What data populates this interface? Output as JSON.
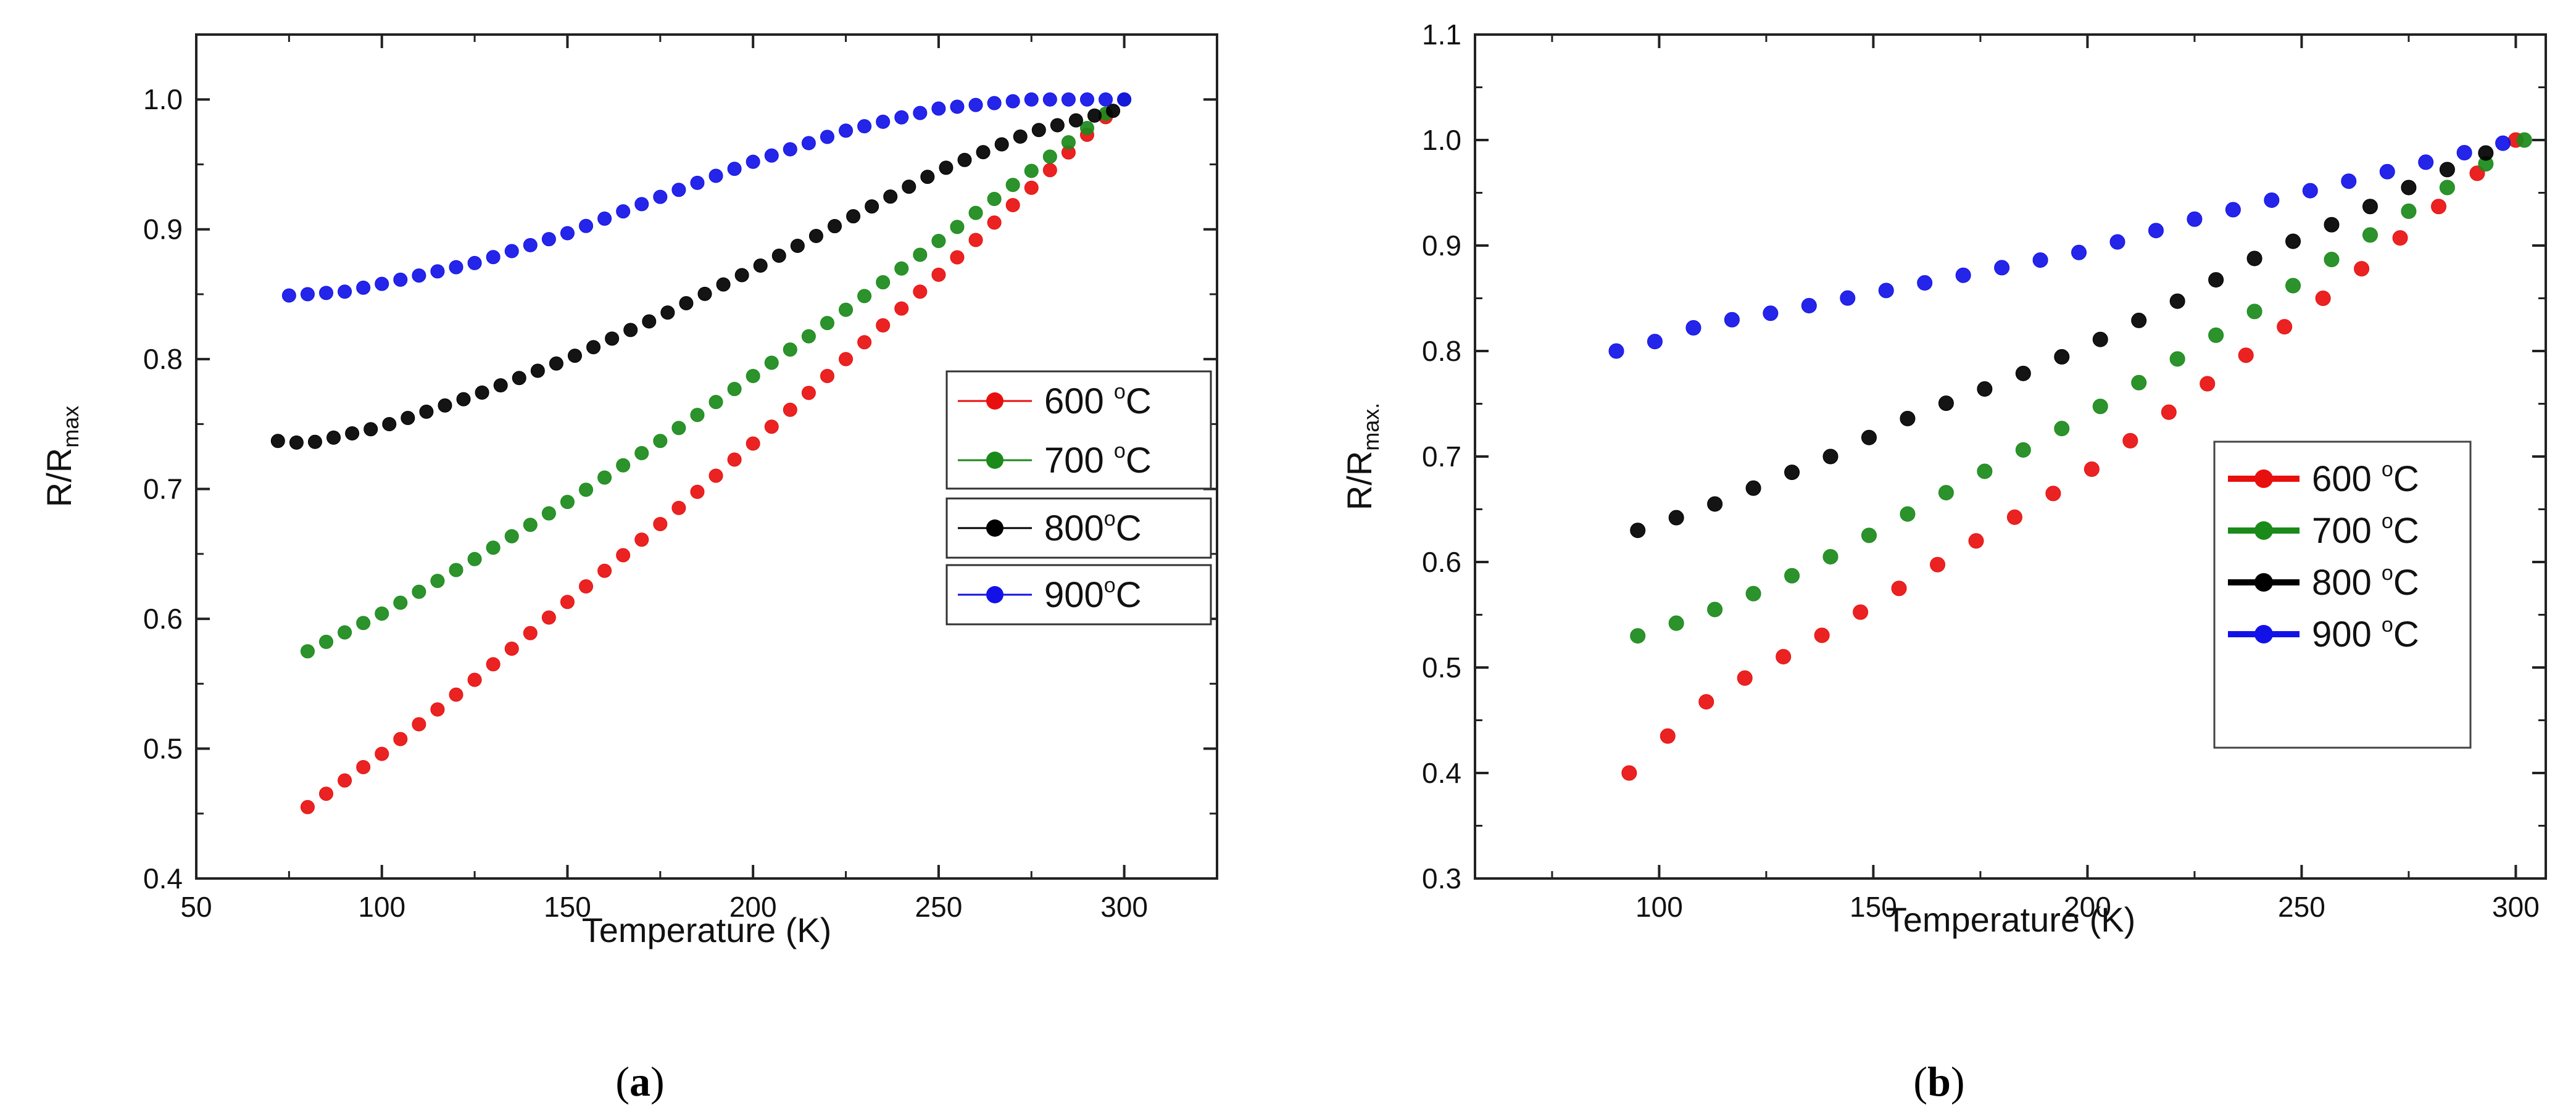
{
  "figure": {
    "panels": [
      {
        "paren_open": "(",
        "letter": "a",
        "paren_close": ")"
      },
      {
        "paren_open": "(",
        "letter": "b",
        "paren_close": ")"
      }
    ]
  },
  "chart_data": [
    {
      "type": "scatter",
      "panel_label": "a",
      "xlabel": "Temperature (K)",
      "ylabel_main": "R/R",
      "ylabel_sub": "max",
      "xlim": [
        50,
        325
      ],
      "ylim": [
        0.4,
        1.05
      ],
      "xticks": [
        50,
        100,
        150,
        200,
        250,
        300
      ],
      "xtick_labels": [
        "50",
        "100",
        "150",
        "200",
        "250",
        "300"
      ],
      "yticks": [
        0.4,
        0.5,
        0.6,
        0.7,
        0.8,
        0.9,
        1.0
      ],
      "ytick_labels": [
        "0.4",
        "0.5",
        "0.6",
        "0.7",
        "0.8",
        "0.9",
        "1.0"
      ],
      "legend_position": "right-middle",
      "legend_style": "grouped",
      "series": [
        {
          "name": "600 °C",
          "label_main": "600 ",
          "label_sup": "o",
          "label_unit": "C",
          "color": "#e8100f",
          "x": [
            80,
            100,
            125,
            150,
            175,
            200,
            225,
            250,
            275,
            300
          ],
          "y": [
            0.455,
            0.496,
            0.553,
            0.613,
            0.673,
            0.735,
            0.8,
            0.865,
            0.932,
            1.0
          ]
        },
        {
          "name": "700 °C",
          "label_main": "700 ",
          "label_sup": "o",
          "label_unit": "C",
          "color": "#1a8a1a",
          "x": [
            80,
            100,
            125,
            150,
            175,
            200,
            225,
            250,
            275,
            300
          ],
          "y": [
            0.575,
            0.604,
            0.646,
            0.69,
            0.737,
            0.787,
            0.838,
            0.891,
            0.945,
            1.0
          ]
        },
        {
          "name": "800°C",
          "label_main": "800",
          "label_sup": "o",
          "label_unit": "C",
          "color": "#000000",
          "x": [
            72,
            80,
            100,
            125,
            150,
            175,
            200,
            225,
            250,
            275,
            298
          ],
          "y": [
            0.737,
            0.735,
            0.748,
            0.772,
            0.8,
            0.833,
            0.869,
            0.907,
            0.945,
            0.975,
            0.992
          ]
        },
        {
          "name": "900°C",
          "label_main": "900",
          "label_sup": "o",
          "label_unit": "C",
          "color": "#1212e8",
          "x": [
            75,
            90,
            100,
            125,
            150,
            175,
            200,
            225,
            250,
            275,
            300
          ],
          "y": [
            0.849,
            0.852,
            0.858,
            0.874,
            0.897,
            0.925,
            0.952,
            0.976,
            0.993,
            1.0,
            1.0
          ]
        }
      ]
    },
    {
      "type": "scatter",
      "panel_label": "b",
      "xlabel": "Temperature (K)",
      "ylabel_main": "R/R",
      "ylabel_sub": "max.",
      "xlim": [
        57,
        307
      ],
      "ylim": [
        0.3,
        1.1
      ],
      "xticks": [
        100,
        150,
        200,
        250,
        300
      ],
      "xtick_labels": [
        "100",
        "150",
        "200",
        "250",
        "300"
      ],
      "yticks": [
        0.3,
        0.4,
        0.5,
        0.6,
        0.7,
        0.8,
        0.9,
        1.0,
        1.1
      ],
      "ytick_labels": [
        "0.3",
        "0.4",
        "0.5",
        "0.6",
        "0.7",
        "0.8",
        "0.9",
        "1.0",
        "1.1"
      ],
      "legend_position": "right-middle",
      "legend_style": "boxed",
      "series": [
        {
          "name": "600 °C",
          "label_main": "600 ",
          "label_sup": "o",
          "label_unit": "C",
          "color": "#e8100f",
          "x": [
            93,
            96,
            101,
            105,
            110,
            120,
            140,
            160,
            180,
            200,
            220,
            240,
            260,
            280,
            300
          ],
          "y": [
            0.4,
            0.42,
            0.43,
            0.45,
            0.465,
            0.49,
            0.535,
            0.585,
            0.635,
            0.685,
            0.745,
            0.805,
            0.865,
            0.93,
            1.0
          ]
        },
        {
          "name": "700 °C",
          "label_main": "700 ",
          "label_sup": "o",
          "label_unit": "C",
          "color": "#1a8a1a",
          "x": [
            95,
            110,
            125,
            140,
            160,
            180,
            200,
            220,
            240,
            260,
            280,
            302
          ],
          "y": [
            0.53,
            0.55,
            0.575,
            0.605,
            0.65,
            0.695,
            0.74,
            0.79,
            0.84,
            0.895,
            0.945,
            1.0
          ]
        },
        {
          "name": "800 °C",
          "label_main": "800 ",
          "label_sup": "o",
          "label_unit": "C",
          "color": "#000000",
          "x": [
            95,
            110,
            125,
            140,
            160,
            180,
            200,
            220,
            240,
            260,
            280,
            300
          ],
          "y": [
            0.63,
            0.65,
            0.675,
            0.7,
            0.74,
            0.77,
            0.805,
            0.845,
            0.89,
            0.925,
            0.965,
            1.0
          ]
        },
        {
          "name": "900 °C",
          "label_main": "900 ",
          "label_sup": "o",
          "label_unit": "C",
          "color": "#1212e8",
          "x": [
            90,
            100,
            110,
            125,
            150,
            175,
            200,
            225,
            250,
            275,
            300
          ],
          "y": [
            0.8,
            0.81,
            0.825,
            0.835,
            0.855,
            0.875,
            0.895,
            0.925,
            0.95,
            0.975,
            1.0
          ]
        }
      ]
    }
  ]
}
